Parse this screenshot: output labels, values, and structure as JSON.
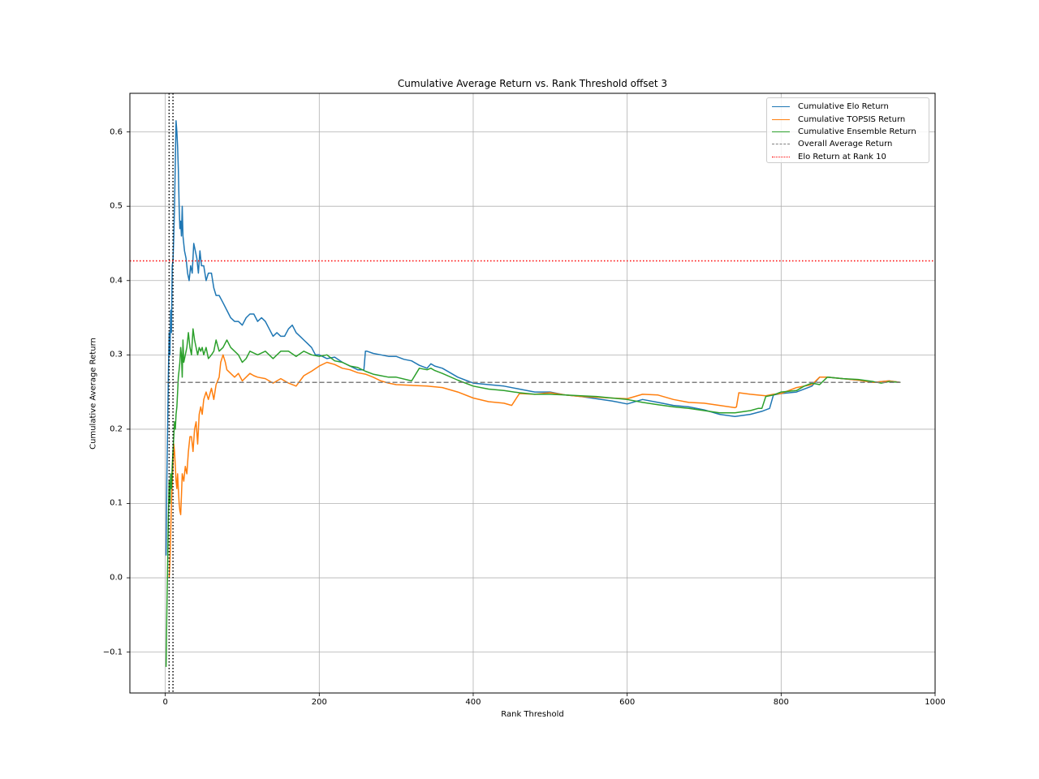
{
  "chart_data": {
    "type": "line",
    "title": "Cumulative Average Return vs. Rank Threshold offset 3",
    "xlabel": "Rank Threshold",
    "ylabel": "Cumulative Average Return",
    "xlim": [
      -46,
      1000
    ],
    "ylim": [
      -0.155,
      0.652
    ],
    "xticks": [
      0,
      200,
      400,
      600,
      800,
      1000
    ],
    "xtick_labels": [
      "0",
      "200",
      "400",
      "600",
      "800",
      "1000"
    ],
    "yticks": [
      -0.1,
      0.0,
      0.1,
      0.2,
      0.3,
      0.4,
      0.5,
      0.6
    ],
    "ytick_labels": [
      "−0.1",
      "0.0",
      "0.1",
      "0.2",
      "0.3",
      "0.4",
      "0.5",
      "0.6"
    ],
    "grid": true,
    "legend_position": "upper right",
    "series": [
      {
        "name": "Cumulative Elo Return",
        "color": "#1f77b4",
        "style": "solid",
        "x": [
          1,
          2,
          3,
          4,
          5,
          6,
          7,
          8,
          9,
          10,
          11,
          12,
          13,
          14,
          15,
          16,
          17,
          18,
          19,
          20,
          21,
          22,
          23,
          25,
          27,
          29,
          31,
          33,
          35,
          37,
          39,
          41,
          43,
          45,
          47,
          50,
          53,
          56,
          60,
          63,
          66,
          70,
          75,
          80,
          85,
          90,
          95,
          100,
          105,
          110,
          115,
          120,
          125,
          130,
          135,
          140,
          145,
          150,
          155,
          160,
          165,
          170,
          175,
          180,
          185,
          190,
          195,
          200,
          210,
          220,
          230,
          240,
          250,
          258,
          260,
          262,
          270,
          280,
          290,
          300,
          310,
          320,
          330,
          340,
          345,
          350,
          360,
          370,
          380,
          390,
          400,
          420,
          440,
          460,
          480,
          500,
          520,
          540,
          560,
          580,
          600,
          620,
          640,
          660,
          680,
          700,
          720,
          740,
          760,
          775,
          780,
          785,
          790,
          800,
          820,
          840,
          850,
          860,
          880,
          900,
          920,
          940,
          955
        ],
        "values": [
          0.03,
          0.13,
          0.2,
          0.27,
          0.33,
          0.3,
          0.36,
          0.33,
          0.42,
          0.4265,
          0.46,
          0.5,
          0.56,
          0.615,
          0.6,
          0.58,
          0.55,
          0.5,
          0.47,
          0.48,
          0.46,
          0.5,
          0.46,
          0.44,
          0.43,
          0.41,
          0.4,
          0.42,
          0.41,
          0.45,
          0.44,
          0.43,
          0.41,
          0.44,
          0.42,
          0.42,
          0.4,
          0.41,
          0.41,
          0.39,
          0.38,
          0.38,
          0.37,
          0.36,
          0.35,
          0.345,
          0.345,
          0.34,
          0.35,
          0.355,
          0.355,
          0.345,
          0.35,
          0.345,
          0.335,
          0.325,
          0.33,
          0.325,
          0.325,
          0.335,
          0.34,
          0.33,
          0.325,
          0.32,
          0.315,
          0.31,
          0.3,
          0.3,
          0.295,
          0.297,
          0.29,
          0.285,
          0.28,
          0.28,
          0.305,
          0.305,
          0.302,
          0.3,
          0.298,
          0.298,
          0.294,
          0.292,
          0.286,
          0.282,
          0.288,
          0.285,
          0.282,
          0.276,
          0.27,
          0.266,
          0.262,
          0.26,
          0.258,
          0.254,
          0.25,
          0.25,
          0.246,
          0.244,
          0.241,
          0.238,
          0.234,
          0.24,
          0.236,
          0.232,
          0.23,
          0.226,
          0.22,
          0.217,
          0.22,
          0.224,
          0.226,
          0.228,
          0.246,
          0.248,
          0.25,
          0.258,
          0.27,
          0.27,
          0.268,
          0.266,
          0.263,
          0.265,
          0.263
        ]
      },
      {
        "name": "Cumulative TOPSIS Return",
        "color": "#ff7f0e",
        "style": "solid",
        "x": [
          5,
          6,
          7,
          8,
          9,
          10,
          11,
          12,
          13,
          14,
          15,
          16,
          17,
          18,
          19,
          20,
          21,
          22,
          24,
          26,
          28,
          30,
          32,
          34,
          36,
          38,
          40,
          42,
          44,
          46,
          48,
          50,
          53,
          56,
          60,
          63,
          66,
          70,
          72,
          75,
          78,
          80,
          85,
          90,
          95,
          100,
          105,
          110,
          115,
          120,
          130,
          140,
          150,
          160,
          170,
          180,
          190,
          200,
          210,
          220,
          230,
          240,
          250,
          260,
          270,
          280,
          290,
          300,
          320,
          340,
          360,
          380,
          400,
          420,
          440,
          450,
          460,
          480,
          500,
          520,
          540,
          560,
          580,
          600,
          620,
          640,
          660,
          680,
          700,
          720,
          740,
          742,
          745,
          760,
          780,
          790,
          800,
          820,
          840,
          850,
          860,
          880,
          900,
          920,
          940,
          955
        ],
        "values": [
          0.0,
          0.02,
          0.06,
          0.1,
          0.13,
          0.15,
          0.18,
          0.17,
          0.15,
          0.13,
          0.12,
          0.14,
          0.12,
          0.1,
          0.09,
          0.085,
          0.11,
          0.14,
          0.13,
          0.15,
          0.14,
          0.17,
          0.19,
          0.19,
          0.17,
          0.2,
          0.21,
          0.18,
          0.22,
          0.23,
          0.22,
          0.24,
          0.25,
          0.24,
          0.255,
          0.24,
          0.26,
          0.27,
          0.29,
          0.3,
          0.29,
          0.28,
          0.275,
          0.27,
          0.275,
          0.265,
          0.27,
          0.275,
          0.272,
          0.27,
          0.268,
          0.262,
          0.268,
          0.262,
          0.258,
          0.272,
          0.278,
          0.285,
          0.29,
          0.287,
          0.282,
          0.28,
          0.276,
          0.274,
          0.27,
          0.265,
          0.262,
          0.26,
          0.259,
          0.258,
          0.256,
          0.25,
          0.242,
          0.237,
          0.235,
          0.232,
          0.248,
          0.247,
          0.249,
          0.246,
          0.244,
          0.243,
          0.242,
          0.241,
          0.247,
          0.246,
          0.24,
          0.236,
          0.235,
          0.232,
          0.229,
          0.23,
          0.249,
          0.247,
          0.245,
          0.247,
          0.248,
          0.256,
          0.26,
          0.27,
          0.27,
          0.268,
          0.266,
          0.263,
          0.265,
          0.263
        ]
      },
      {
        "name": "Cumulative Ensemble Return",
        "color": "#2ca02c",
        "style": "solid",
        "x": [
          1,
          2,
          3,
          4,
          5,
          6,
          7,
          8,
          9,
          10,
          11,
          12,
          13,
          14,
          15,
          16,
          17,
          18,
          19,
          20,
          21,
          22,
          23,
          24,
          26,
          28,
          30,
          32,
          34,
          36,
          38,
          40,
          42,
          44,
          46,
          48,
          50,
          53,
          56,
          60,
          63,
          66,
          70,
          75,
          80,
          85,
          90,
          95,
          100,
          105,
          110,
          120,
          130,
          140,
          150,
          160,
          170,
          180,
          190,
          200,
          210,
          220,
          230,
          240,
          250,
          260,
          270,
          280,
          290,
          300,
          320,
          330,
          340,
          345,
          350,
          360,
          380,
          400,
          420,
          440,
          460,
          480,
          500,
          520,
          540,
          560,
          580,
          600,
          620,
          640,
          660,
          680,
          700,
          720,
          740,
          760,
          770,
          775,
          780,
          790,
          800,
          820,
          830,
          840,
          850,
          860,
          880,
          900,
          920,
          930,
          940,
          955
        ],
        "values": [
          -0.12,
          -0.05,
          0.02,
          0.08,
          0.13,
          0.1,
          0.14,
          0.12,
          0.15,
          0.17,
          0.19,
          0.21,
          0.2,
          0.22,
          0.23,
          0.25,
          0.27,
          0.28,
          0.29,
          0.31,
          0.3,
          0.27,
          0.32,
          0.29,
          0.3,
          0.31,
          0.33,
          0.31,
          0.3,
          0.335,
          0.32,
          0.31,
          0.3,
          0.31,
          0.305,
          0.31,
          0.3,
          0.31,
          0.295,
          0.3,
          0.305,
          0.32,
          0.305,
          0.31,
          0.32,
          0.31,
          0.305,
          0.3,
          0.29,
          0.295,
          0.305,
          0.3,
          0.305,
          0.295,
          0.305,
          0.305,
          0.298,
          0.305,
          0.3,
          0.298,
          0.3,
          0.292,
          0.29,
          0.285,
          0.283,
          0.278,
          0.274,
          0.272,
          0.27,
          0.27,
          0.265,
          0.282,
          0.28,
          0.282,
          0.279,
          0.275,
          0.266,
          0.258,
          0.254,
          0.252,
          0.249,
          0.247,
          0.247,
          0.246,
          0.245,
          0.244,
          0.242,
          0.24,
          0.236,
          0.233,
          0.23,
          0.228,
          0.225,
          0.222,
          0.222,
          0.225,
          0.228,
          0.228,
          0.244,
          0.246,
          0.25,
          0.252,
          0.258,
          0.262,
          0.26,
          0.27,
          0.268,
          0.267,
          0.264,
          0.262,
          0.264,
          0.263
        ]
      }
    ],
    "reference_lines": [
      {
        "name": "Overall Average Return",
        "orientation": "horizontal",
        "value": 0.263,
        "color": "#808080",
        "style": "dashed",
        "x_range": [
          1,
          955
        ]
      },
      {
        "name": "Elo Return at Rank 10",
        "orientation": "horizontal",
        "value": 0.4265,
        "color": "#ff0000",
        "style": "dotted",
        "x_range": "full"
      },
      {
        "name": "rank marker 5",
        "orientation": "vertical",
        "value": 5,
        "color": "#000000",
        "style": "dotted",
        "in_legend": false
      },
      {
        "name": "rank marker 10",
        "orientation": "vertical",
        "value": 10,
        "color": "#000000",
        "style": "dotted",
        "in_legend": false
      }
    ],
    "legend": [
      {
        "label": "Cumulative Elo Return",
        "color": "#1f77b4",
        "style": "solid"
      },
      {
        "label": "Cumulative TOPSIS Return",
        "color": "#ff7f0e",
        "style": "solid"
      },
      {
        "label": "Cumulative Ensemble Return",
        "color": "#2ca02c",
        "style": "solid"
      },
      {
        "label": "Overall Average Return",
        "color": "#808080",
        "style": "dashed"
      },
      {
        "label": "Elo Return at Rank 10",
        "color": "#ff0000",
        "style": "dotted"
      }
    ]
  }
}
